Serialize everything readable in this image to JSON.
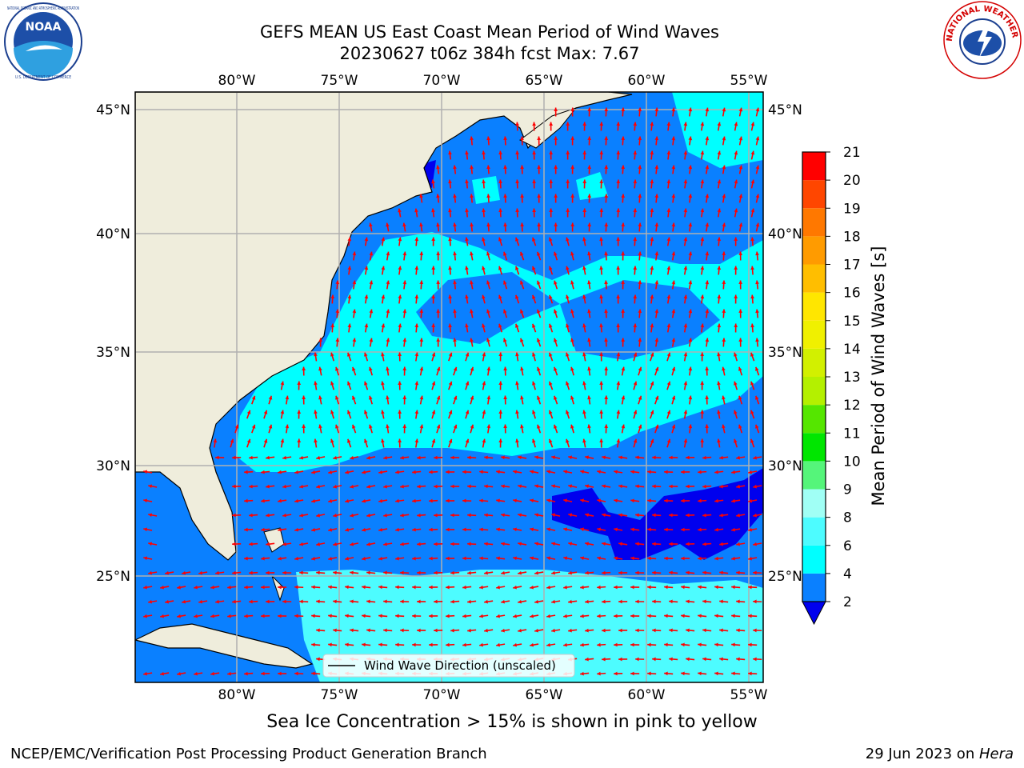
{
  "title": {
    "line1": "GEFS MEAN US East Coast Mean Period of Wind Waves",
    "line2": "20230627 t06z 384h fcst   Max: 7.67"
  },
  "logos": {
    "noaa_text": "NOAA",
    "noaa_ring": "NATIONAL OCEANIC AND ATMOSPHERIC ADMINISTRATION",
    "noaa_ring_bottom": "U.S. DEPARTMENT OF COMMERCE",
    "nws_ring": "NATIONAL WEATHER SERVICE"
  },
  "map": {
    "lon_labels": [
      "80°W",
      "75°W",
      "70°W",
      "65°W",
      "60°W",
      "55°W"
    ],
    "lat_labels": [
      "45°N",
      "40°N",
      "35°N",
      "30°N",
      "25°N"
    ],
    "legend_label": "Wind Wave Direction (unscaled)",
    "colors": {
      "land": "#efeddc",
      "band_2_4": "#0a80ff",
      "band_4_6": "#00ffff",
      "band_6_8": "#4dfcff",
      "band_lt_2": "#0000ee",
      "arrow": "#ff0000",
      "grid": "#b0b0b0"
    }
  },
  "colorbar": {
    "label": "Mean Period of Wind Waves [s]",
    "ticks": [
      "2",
      "4",
      "6",
      "8",
      "9",
      "10",
      "11",
      "12",
      "13",
      "14",
      "15",
      "16",
      "17",
      "18",
      "19",
      "20",
      "21"
    ],
    "segments": [
      {
        "from": 2,
        "to": 4,
        "color": "#0a80ff"
      },
      {
        "from": 4,
        "to": 6,
        "color": "#00ffff"
      },
      {
        "from": 6,
        "to": 8,
        "color": "#4dfcff"
      },
      {
        "from": 8,
        "to": 9,
        "color": "#a0fff5"
      },
      {
        "from": 9,
        "to": 10,
        "color": "#55f57a"
      },
      {
        "from": 10,
        "to": 11,
        "color": "#00e600"
      },
      {
        "from": 11,
        "to": 12,
        "color": "#55e600"
      },
      {
        "from": 12,
        "to": 13,
        "color": "#b4f000"
      },
      {
        "from": 13,
        "to": 14,
        "color": "#d2f000"
      },
      {
        "from": 14,
        "to": 15,
        "color": "#f0f000"
      },
      {
        "from": 15,
        "to": 16,
        "color": "#ffe600"
      },
      {
        "from": 16,
        "to": 17,
        "color": "#ffbe00"
      },
      {
        "from": 17,
        "to": 18,
        "color": "#ff9b00"
      },
      {
        "from": 18,
        "to": 19,
        "color": "#ff7800"
      },
      {
        "from": 19,
        "to": 20,
        "color": "#ff4600"
      },
      {
        "from": 20,
        "to": 21,
        "color": "#ff0000"
      }
    ],
    "under_color": "#0000ee"
  },
  "note": "Sea Ice Concentration > 15% is shown in pink to yellow",
  "footer": {
    "left": "NCEP/EMC/Verification Post Processing Product Generation Branch",
    "date": "29 Jun 2023 on ",
    "machine": "Hera"
  }
}
